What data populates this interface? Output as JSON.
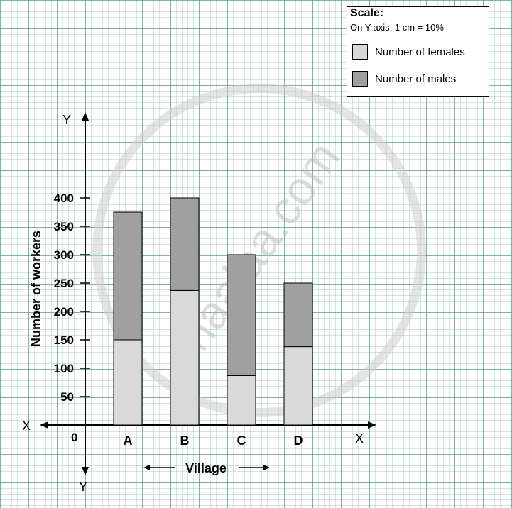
{
  "chart_data": {
    "type": "bar",
    "stacked": true,
    "categories": [
      "A",
      "B",
      "C",
      "D"
    ],
    "series": [
      {
        "name": "Number of females",
        "values": [
          150,
          237,
          87,
          138
        ],
        "color": "#d9d9d9"
      },
      {
        "name": "Number of males",
        "values": [
          225,
          163,
          213,
          112
        ],
        "color": "#a0a0a0"
      }
    ],
    "title": "",
    "xlabel": "Village",
    "ylabel": "Number of workers",
    "ylim": [
      0,
      400
    ],
    "yticks": [
      "50",
      "100",
      "150",
      "200",
      "250",
      "300",
      "350",
      "400"
    ],
    "grid": true,
    "legend_position": "top-right"
  },
  "legend": {
    "title": "Scale:",
    "scale_text": "On Y-axis, 1 cm = 10%"
  },
  "axes": {
    "origin_label": "0",
    "x_pos_label": "X",
    "x_neg_label": "X",
    "y_pos_label": "Y",
    "y_neg_label": "Y"
  },
  "watermark": "shaalaa.com"
}
